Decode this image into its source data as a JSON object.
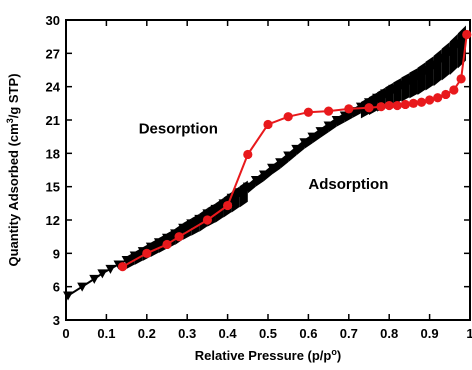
{
  "chart_data": {
    "type": "line",
    "xlabel": "Relative Pressure (p/p°)",
    "ylabel": "Quantity Adsorbed (cm³/g STP)",
    "xlabel_parts": {
      "main": "Relative Pressure (p/p",
      "sup": "o",
      "end": ")"
    },
    "ylabel_parts": {
      "main": "Quantity Adsorbed (cm",
      "sup": "3",
      "end": "/g STP)"
    },
    "xlim": [
      0,
      1.0
    ],
    "ylim": [
      3,
      30
    ],
    "xticks": [
      0,
      0.1,
      0.2,
      0.3,
      0.4,
      0.5,
      0.6,
      0.7,
      0.8,
      0.9,
      1.0
    ],
    "xtick_labels": [
      "0",
      "0.1",
      "0.2",
      "0.3",
      "0.4",
      "0.5",
      "0.6",
      "0.7",
      "0.8",
      "0.9",
      "1"
    ],
    "yticks": [
      3,
      6,
      9,
      12,
      15,
      18,
      21,
      24,
      27,
      30
    ],
    "ytick_labels": [
      "3",
      "6",
      "9",
      "12",
      "15",
      "18",
      "21",
      "24",
      "27",
      "30"
    ],
    "grid": false,
    "legend": "none",
    "annotations": [
      {
        "text": "Desorption",
        "x": 0.18,
        "y": 19.8
      },
      {
        "text": "Adsorption",
        "x": 0.6,
        "y": 14.8
      }
    ],
    "series": [
      {
        "marker": "triangle-down",
        "color": "#000000",
        "x": [
          0.005,
          0.04,
          0.07,
          0.09,
          0.11,
          0.13,
          0.15,
          0.17,
          0.19,
          0.21,
          0.23,
          0.25,
          0.27,
          0.29,
          0.31,
          0.33,
          0.35,
          0.37,
          0.39,
          0.41,
          0.43,
          0.45,
          0.47,
          0.49,
          0.51,
          0.53,
          0.55,
          0.57,
          0.59,
          0.61,
          0.63,
          0.65,
          0.67,
          0.69,
          0.71,
          0.73,
          0.75,
          0.77,
          0.79,
          0.81,
          0.83,
          0.85,
          0.87,
          0.89,
          0.91,
          0.93,
          0.95,
          0.97,
          0.99
        ],
        "y": [
          5.2,
          6.0,
          6.7,
          7.2,
          7.6,
          8.0,
          8.4,
          8.8,
          9.2,
          9.6,
          10.0,
          10.4,
          10.8,
          11.3,
          11.7,
          12.1,
          12.6,
          13.0,
          13.5,
          14.0,
          14.5,
          15.0,
          15.6,
          16.1,
          16.7,
          17.2,
          17.8,
          18.4,
          19.0,
          19.5,
          20.0,
          20.5,
          21.0,
          21.4,
          21.8,
          22.2,
          22.6,
          23.0,
          23.4,
          23.8,
          24.2,
          24.6,
          25.0,
          25.5,
          26.0,
          26.6,
          27.2,
          27.9,
          28.6
        ]
      },
      {
        "marker": "circle",
        "color": "#e8191c",
        "x": [
          0.992,
          0.978,
          0.96,
          0.94,
          0.92,
          0.9,
          0.88,
          0.86,
          0.84,
          0.82,
          0.8,
          0.78,
          0.75,
          0.7,
          0.65,
          0.6,
          0.55,
          0.5,
          0.45,
          0.4,
          0.35,
          0.28,
          0.25,
          0.2,
          0.14
        ],
        "y": [
          28.7,
          24.7,
          23.7,
          23.3,
          23.0,
          22.8,
          22.6,
          22.5,
          22.4,
          22.3,
          22.3,
          22.2,
          22.1,
          22.0,
          21.8,
          21.7,
          21.3,
          20.6,
          17.9,
          13.3,
          12.0,
          10.5,
          9.8,
          9.0,
          7.8
        ]
      }
    ]
  }
}
